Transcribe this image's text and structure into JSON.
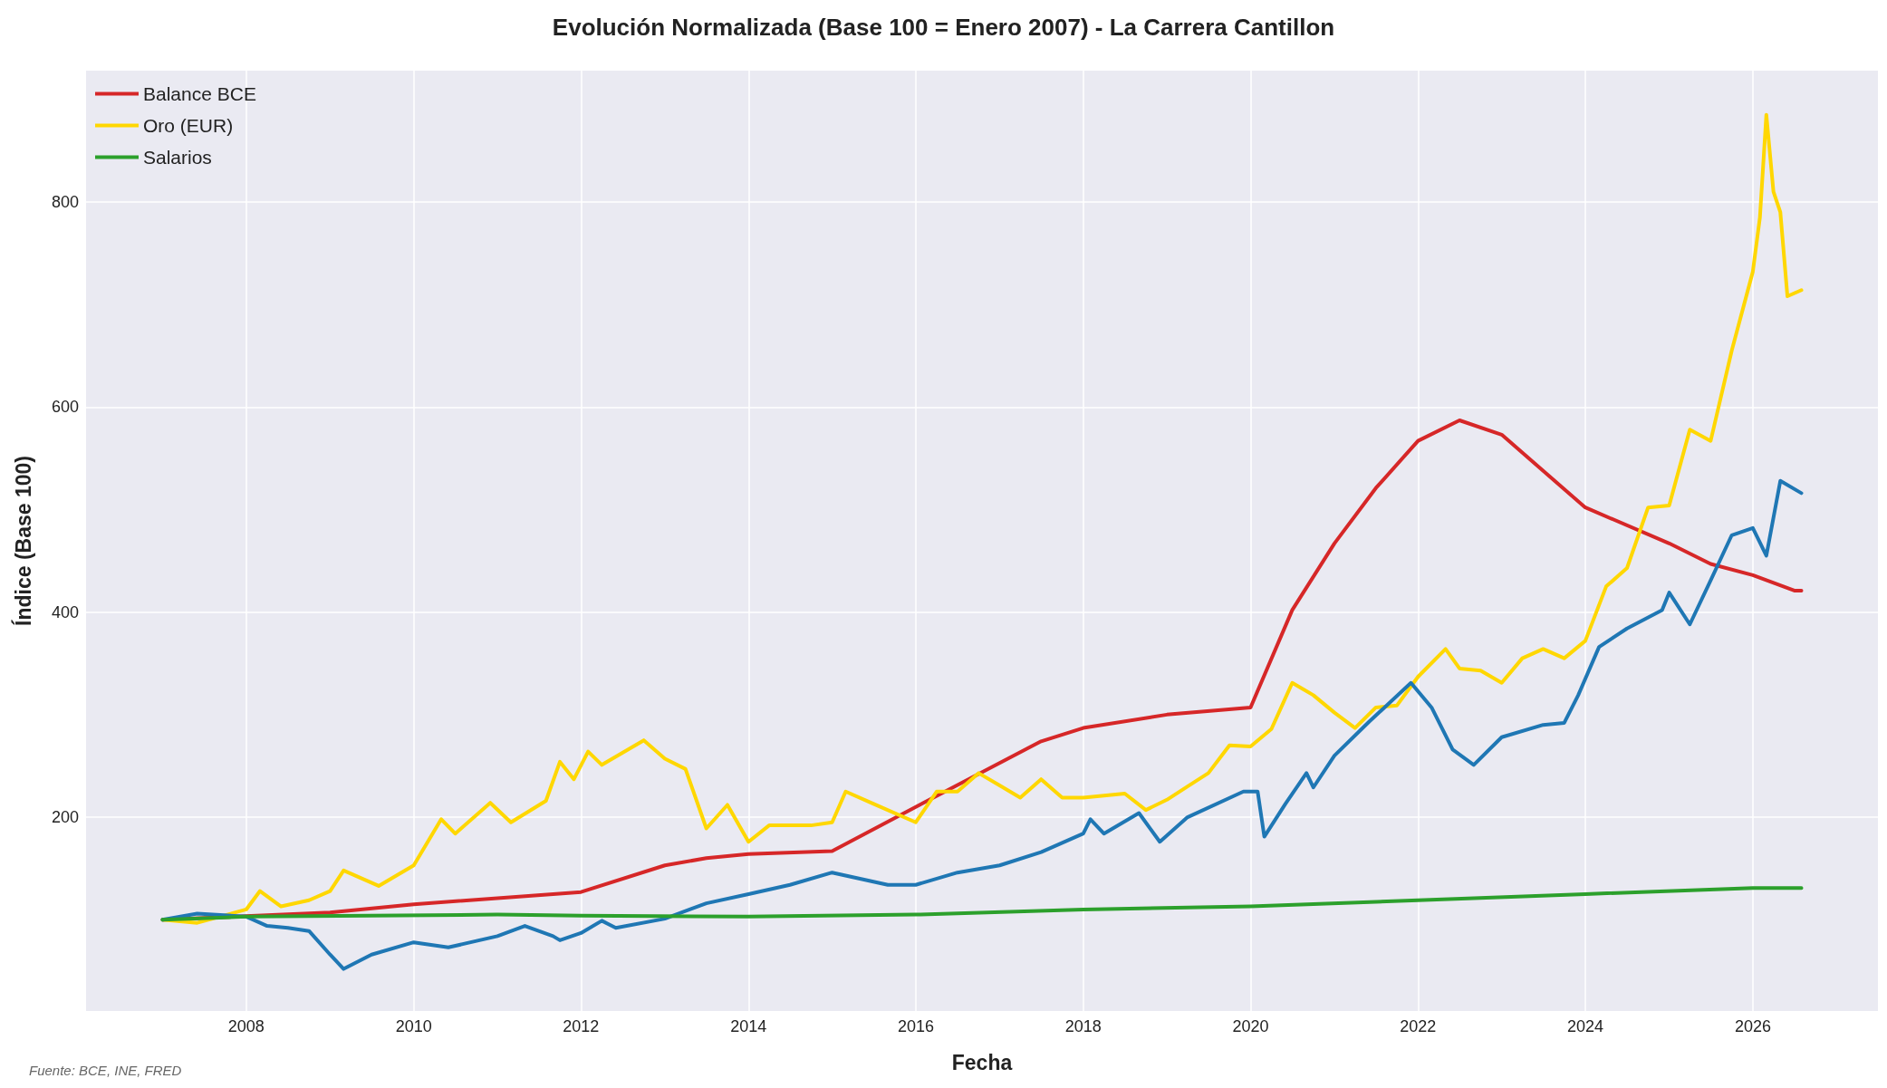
{
  "chart_data": {
    "type": "line",
    "title": "Evolución Normalizada (Base 100 = Enero 2007) - La Carrera Cantillon",
    "xlabel": "Fecha",
    "ylabel": "Índice (Base 100)",
    "annotations": [
      "Fuente: BCE, INE, FRED"
    ],
    "xlim": [
      "2006-02",
      "2027-07"
    ],
    "xticks": [
      "2008",
      "2010",
      "2012",
      "2014",
      "2016",
      "2018",
      "2020",
      "2022",
      "2024",
      "2026"
    ],
    "ylim": [
      11,
      928
    ],
    "yticks": [
      200,
      400,
      600,
      800
    ],
    "grid": true,
    "legend": "top left",
    "marker": "none",
    "line_style": "solid",
    "series": [
      {
        "name": "Balance BCE",
        "color": "#d62728",
        "x": [
          "2007-01",
          "2009-01",
          "2010-01",
          "2012-01",
          "2013-01",
          "2013-07",
          "2014-01",
          "2015-01",
          "2016-01",
          "2017-07",
          "2018-01",
          "2019-01",
          "2020-01",
          "2020-07",
          "2021-01",
          "2021-07",
          "2022-01",
          "2022-07",
          "2023-01",
          "2024-01",
          "2025-01",
          "2025-07",
          "2026-01",
          "2026-07",
          "2026-08"
        ],
        "values": [
          100,
          107,
          115,
          127,
          153,
          160,
          164,
          167,
          210,
          274,
          287,
          300,
          307,
          402,
          467,
          521,
          567,
          587,
          573,
          502,
          467,
          447,
          436,
          421,
          421
        ]
      },
      {
        "name": "Oro (EUR)",
        "color": "#ffd700",
        "x": [
          "2007-01",
          "2007-06",
          "2008-01",
          "2008-03",
          "2008-06",
          "2008-10",
          "2009-01",
          "2009-03",
          "2009-08",
          "2010-01",
          "2010-05",
          "2010-07",
          "2010-12",
          "2011-03",
          "2011-08",
          "2011-10",
          "2011-12",
          "2012-02",
          "2012-04",
          "2012-10",
          "2013-01",
          "2013-04",
          "2013-07",
          "2013-10",
          "2014-01",
          "2014-04",
          "2014-10",
          "2015-01",
          "2015-03",
          "2015-07",
          "2016-01",
          "2016-04",
          "2016-07",
          "2016-10",
          "2017-01",
          "2017-04",
          "2017-07",
          "2017-10",
          "2018-01",
          "2018-07",
          "2018-10",
          "2019-01",
          "2019-04",
          "2019-07",
          "2019-10",
          "2020-01",
          "2020-04",
          "2020-07",
          "2020-10",
          "2021-01",
          "2021-04",
          "2021-07",
          "2021-10",
          "2022-01",
          "2022-05",
          "2022-07",
          "2022-10",
          "2023-01",
          "2023-04",
          "2023-07",
          "2023-10",
          "2024-01",
          "2024-04",
          "2024-07",
          "2024-10",
          "2025-01",
          "2025-04",
          "2025-07",
          "2025-10",
          "2026-01",
          "2026-02",
          "2026-03",
          "2026-04",
          "2026-05",
          "2026-06",
          "2026-08"
        ],
        "values": [
          100,
          97,
          110,
          128,
          113,
          119,
          128,
          148,
          133,
          153,
          198,
          184,
          214,
          195,
          216,
          254,
          237,
          264,
          251,
          275,
          257,
          247,
          189,
          212,
          176,
          192,
          192,
          195,
          225,
          213,
          195,
          225,
          225,
          243,
          231,
          219,
          237,
          219,
          219,
          223,
          207,
          217,
          230,
          243,
          270,
          269,
          286,
          331,
          319,
          302,
          287,
          307,
          309,
          337,
          364,
          345,
          343,
          331,
          355,
          364,
          355,
          372,
          425,
          443,
          502,
          504,
          578,
          567,
          655,
          732,
          785,
          885,
          810,
          790,
          708,
          714
        ]
      },
      {
        "color": "#1f77b4",
        "x": [
          "2007-01",
          "2007-06",
          "2008-01",
          "2008-04",
          "2008-07",
          "2008-10",
          "2009-01",
          "2009-03",
          "2009-07",
          "2010-01",
          "2010-06",
          "2011-01",
          "2011-05",
          "2011-09",
          "2011-10",
          "2012-01",
          "2012-04",
          "2012-06",
          "2013-01",
          "2013-07",
          "2014-01",
          "2014-07",
          "2015-01",
          "2015-09",
          "2016-01",
          "2016-07",
          "2017-01",
          "2017-07",
          "2018-01",
          "2018-02",
          "2018-04",
          "2018-09",
          "2018-12",
          "2019-04",
          "2019-12",
          "2020-02",
          "2020-03",
          "2020-06",
          "2020-09",
          "2020-10",
          "2021-01",
          "2021-06",
          "2021-12",
          "2022-03",
          "2022-06",
          "2022-09",
          "2023-01",
          "2023-07",
          "2023-10",
          "2023-12",
          "2024-03",
          "2024-07",
          "2024-12",
          "2025-01",
          "2025-04",
          "2025-07",
          "2025-10",
          "2026-01",
          "2026-03",
          "2026-05",
          "2026-08"
        ],
        "values": [
          100,
          106,
          103,
          94,
          92,
          89,
          66,
          52,
          66,
          78,
          73,
          84,
          94,
          84,
          80,
          87,
          99,
          92,
          101,
          116,
          125,
          134,
          146,
          134,
          134,
          146,
          153,
          166,
          184,
          198,
          184,
          204,
          176,
          200,
          225,
          225,
          181,
          213,
          243,
          229,
          260,
          293,
          331,
          307,
          266,
          251,
          278,
          290,
          292,
          319,
          366,
          384,
          402,
          419,
          388,
          431,
          475,
          482,
          455,
          528,
          516
        ]
      },
      {
        "name": "Salarios",
        "color": "#2ca02c",
        "x": [
          "2007-01",
          "2008-01",
          "2011-01",
          "2012-01",
          "2014-01",
          "2016-01",
          "2018-01",
          "2020-01",
          "2022-01",
          "2024-01",
          "2026-01",
          "2026-08"
        ],
        "values": [
          100,
          103,
          105,
          104,
          103,
          105,
          110,
          113,
          119,
          125,
          131,
          131
        ]
      }
    ]
  }
}
